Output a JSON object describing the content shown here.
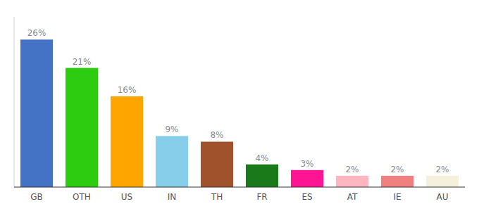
{
  "chart_data": {
    "type": "bar",
    "categories": [
      "GB",
      "OTH",
      "US",
      "IN",
      "TH",
      "FR",
      "ES",
      "AT",
      "IE",
      "AU"
    ],
    "values": [
      26,
      21,
      16,
      9,
      8,
      4,
      3,
      2,
      2,
      2
    ],
    "value_labels": [
      "26%",
      "21%",
      "16%",
      "9%",
      "8%",
      "4%",
      "3%",
      "2%",
      "2%",
      "2%"
    ],
    "colors": [
      "#4472C4",
      "#2ECC10",
      "#FFA500",
      "#87CEEB",
      "#A0522D",
      "#1A7A1A",
      "#FF1493",
      "#FFB6C1",
      "#F08080",
      "#F5F0DC"
    ],
    "ylim": [
      0,
      30
    ],
    "data_labels": true,
    "tick_labels": "x",
    "grid": false
  }
}
